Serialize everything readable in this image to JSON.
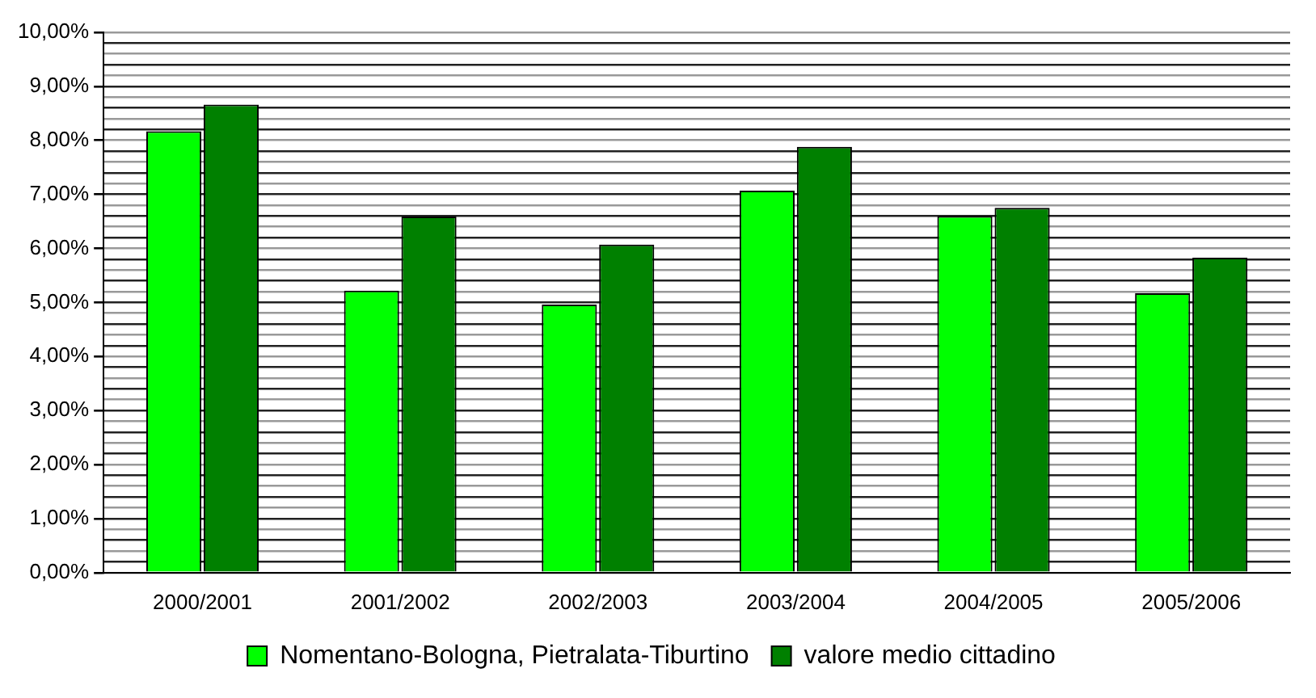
{
  "chart_data": {
    "type": "bar",
    "categories": [
      "2000/2001",
      "2001/2002",
      "2002/2003",
      "2003/2004",
      "2004/2005",
      "2005/2006"
    ],
    "series": [
      {
        "name": "Nomentano-Bologna, Pietralata-Tiburtino",
        "color": "#00ff00",
        "values": [
          8.17,
          5.22,
          4.96,
          7.07,
          6.6,
          5.17
        ]
      },
      {
        "name": "valore medio cittadino",
        "color": "#008000",
        "values": [
          8.66,
          6.59,
          6.07,
          7.88,
          6.75,
          5.83
        ]
      }
    ],
    "ylim": [
      0,
      10
    ],
    "yticks": [
      {
        "value": 0,
        "label": "0,00%"
      },
      {
        "value": 0.2,
        "label": null
      },
      {
        "value": 0.4,
        "label": null
      },
      {
        "value": 0.6,
        "label": null
      },
      {
        "value": 0.8,
        "label": null
      },
      {
        "value": 1,
        "label": "1,00%"
      },
      {
        "value": 1.2,
        "label": null
      },
      {
        "value": 1.4,
        "label": null
      },
      {
        "value": 1.6,
        "label": null
      },
      {
        "value": 1.8,
        "label": null
      },
      {
        "value": 2,
        "label": "2,00%"
      },
      {
        "value": 2.2,
        "label": null
      },
      {
        "value": 2.4,
        "label": null
      },
      {
        "value": 2.6,
        "label": null
      },
      {
        "value": 2.8,
        "label": null
      },
      {
        "value": 3,
        "label": "3,00%"
      },
      {
        "value": 3.2,
        "label": null
      },
      {
        "value": 3.4,
        "label": null
      },
      {
        "value": 3.6,
        "label": null
      },
      {
        "value": 3.8,
        "label": null
      },
      {
        "value": 4,
        "label": "4,00%"
      },
      {
        "value": 4.2,
        "label": null
      },
      {
        "value": 4.4,
        "label": null
      },
      {
        "value": 4.6,
        "label": null
      },
      {
        "value": 4.8,
        "label": null
      },
      {
        "value": 5,
        "label": "5,00%"
      },
      {
        "value": 5.2,
        "label": null
      },
      {
        "value": 5.4,
        "label": null
      },
      {
        "value": 5.6,
        "label": null
      },
      {
        "value": 5.8,
        "label": null
      },
      {
        "value": 6,
        "label": "6,00%"
      },
      {
        "value": 6.2,
        "label": null
      },
      {
        "value": 6.4,
        "label": null
      },
      {
        "value": 6.6,
        "label": null
      },
      {
        "value": 6.8,
        "label": null
      },
      {
        "value": 7,
        "label": "7,00%"
      },
      {
        "value": 7.2,
        "label": null
      },
      {
        "value": 7.4,
        "label": null
      },
      {
        "value": 7.6,
        "label": null
      },
      {
        "value": 7.8,
        "label": null
      },
      {
        "value": 8,
        "label": "8,00%"
      },
      {
        "value": 8.2,
        "label": null
      },
      {
        "value": 8.4,
        "label": null
      },
      {
        "value": 8.6,
        "label": null
      },
      {
        "value": 8.8,
        "label": null
      },
      {
        "value": 9,
        "label": "9,00%"
      },
      {
        "value": 9.2,
        "label": null
      },
      {
        "value": 9.4,
        "label": null
      },
      {
        "value": 9.6,
        "label": null
      },
      {
        "value": 9.8,
        "label": null
      },
      {
        "value": 10,
        "label": "10,00%"
      }
    ],
    "grid": "y",
    "legend": "bottom"
  }
}
